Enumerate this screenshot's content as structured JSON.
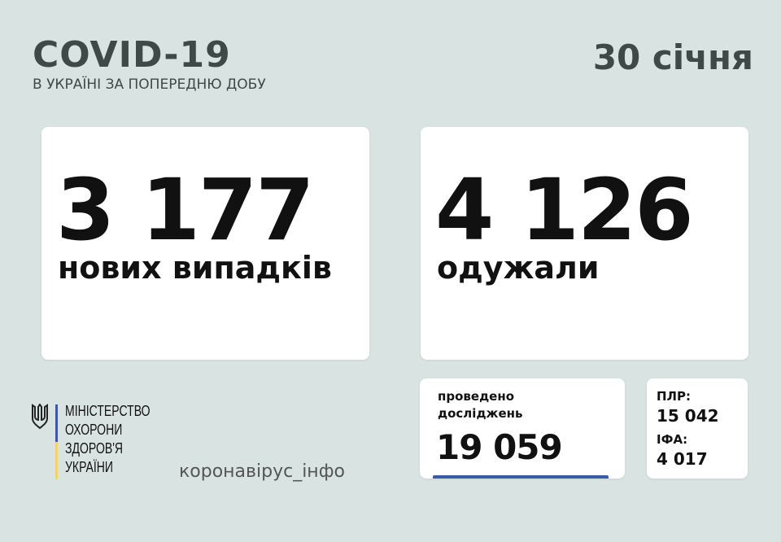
{
  "header": {
    "title": "COVID-19",
    "subtitle": "В УКРАЇНІ ЗА ПОПЕРЕДНЮ ДОБУ",
    "date": "30 січня"
  },
  "cases": {
    "value": "3 177",
    "label": "нових випадків"
  },
  "recovered": {
    "value": "4 126",
    "label": "одужали"
  },
  "tests": {
    "label_line1": "проведено",
    "label_line2": "досліджень",
    "value": "19 059"
  },
  "breakdown": {
    "pcr_label": "ПЛР:",
    "pcr_value": "15 042",
    "ifa_label": "ІФА:",
    "ifa_value": "4 017"
  },
  "footer": {
    "ministry_lines": [
      "МІНІСТЕРСТВО",
      "ОХОРОНИ",
      "ЗДОРОВ'Я",
      "УКРАЇНИ"
    ],
    "site": "коронавірус_інфо",
    "emblem_icon": "trident-icon"
  },
  "colors": {
    "background": "#d9e4e2",
    "accent_blue": "#3a5aa8",
    "accent_yellow": "#f2d36b",
    "title": "#3f4a48"
  }
}
